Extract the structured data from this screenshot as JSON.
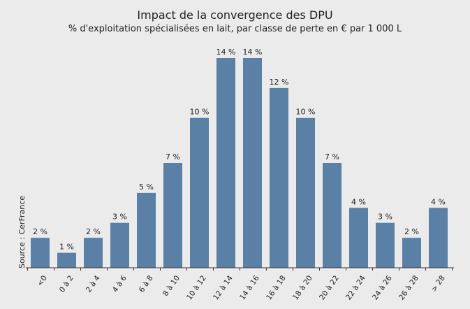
{
  "chart_data": {
    "type": "bar",
    "title": "Impact de la convergence des DPU",
    "subtitle": "% d'exploitation spécialisées en lait, par classe de perte en € par 1 000 L",
    "source": "Source : CerFrance",
    "categories": [
      "<0",
      "0 à 2",
      "2 à 4",
      "4 à 6",
      "6 à 8",
      "8 à 10",
      "10 à 12",
      "12 à 14",
      "14 à 16",
      "16 à 18",
      "18 à 20",
      "20 à 22",
      "22 à 24",
      "24 à 26",
      "26 à 28",
      "> 28"
    ],
    "values": [
      2,
      1,
      2,
      3,
      5,
      7,
      10,
      14,
      14,
      12,
      10,
      7,
      4,
      3,
      2,
      4
    ],
    "value_labels": [
      "2 %",
      "1 %",
      "2 %",
      "3 %",
      "5 %",
      "7 %",
      "10 %",
      "14 %",
      "14 %",
      "12 %",
      "10 %",
      "7 %",
      "4 %",
      "3 %",
      "2 %",
      "4 %"
    ],
    "ylim": [
      0,
      14
    ],
    "grid": false,
    "bar_color": "#5b80a5",
    "background_color": "#ebebeb"
  }
}
